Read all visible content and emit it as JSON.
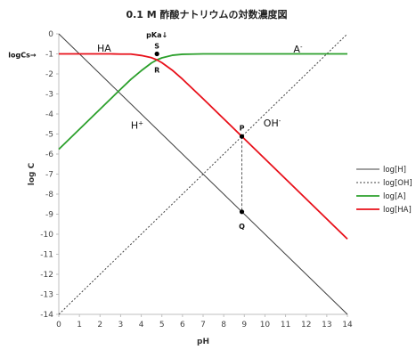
{
  "chart_data": {
    "type": "line",
    "title": "0.1 M 酢酸ナトリウムの対数濃度図",
    "xlabel": "pH",
    "ylabel": "log C",
    "xlim": [
      0,
      14
    ],
    "ylim": [
      -14,
      0
    ],
    "x_ticks": [
      0,
      1,
      2,
      3,
      4,
      5,
      6,
      7,
      8,
      9,
      10,
      11,
      12,
      13,
      14
    ],
    "y_ticks": [
      0,
      -1,
      -2,
      -3,
      -4,
      -5,
      -6,
      -7,
      -8,
      -9,
      -10,
      -11,
      -12,
      -13,
      -14
    ],
    "grid": false,
    "legend_position": "right",
    "x": [
      0,
      0.5,
      1,
      1.5,
      2,
      2.5,
      3,
      3.5,
      4,
      4.5,
      4.76,
      5,
      5.5,
      6,
      6.5,
      7,
      7.5,
      8,
      8.5,
      8.88,
      9,
      9.5,
      10,
      10.5,
      11,
      11.5,
      12,
      12.5,
      13,
      13.5,
      14
    ],
    "series": [
      {
        "name": "log[H]",
        "color": "#404040",
        "dash": "solid",
        "values": [
          0,
          -0.5,
          -1,
          -1.5,
          -2,
          -2.5,
          -3,
          -3.5,
          -4,
          -4.5,
          -4.76,
          -5,
          -5.5,
          -6,
          -6.5,
          -7,
          -7.5,
          -8,
          -8.5,
          -8.88,
          -9,
          -9.5,
          -10,
          -10.5,
          -11,
          -11.5,
          -12,
          -12.5,
          -13,
          -13.5,
          -14
        ]
      },
      {
        "name": "log[OH]",
        "color": "#404040",
        "dash": "dotted",
        "values": [
          -14,
          -13.5,
          -13,
          -12.5,
          -12,
          -11.5,
          -11,
          -10.5,
          -10,
          -9.5,
          -9.24,
          -9,
          -8.5,
          -8,
          -7.5,
          -7,
          -6.5,
          -6,
          -5.5,
          -5.12,
          -5,
          -4.5,
          -4,
          -3.5,
          -3,
          -2.5,
          -2,
          -1.5,
          -1,
          -0.5,
          0
        ]
      },
      {
        "name": "log[A]",
        "color": "#2ca02c",
        "dash": "solid",
        "values": [
          -5.76,
          -5.26,
          -4.76,
          -4.26,
          -3.76,
          -3.26,
          -2.76,
          -2.27,
          -1.84,
          -1.45,
          -1.3,
          -1.2,
          -1.07,
          -1.02,
          -1.01,
          -1.0,
          -1.0,
          -1.0,
          -1.0,
          -1.0,
          -1.0,
          -1.0,
          -1.0,
          -1.0,
          -1.0,
          -1.0,
          -1.0,
          -1.0,
          -1.0,
          -1.0,
          -1.0
        ]
      },
      {
        "name": "log[HA]",
        "color": "#e8101a",
        "dash": "solid",
        "values": [
          -1.0,
          -1.0,
          -1.0,
          -1.0,
          -1.0,
          -1.0,
          -1.01,
          -1.01,
          -1.08,
          -1.19,
          -1.3,
          -1.44,
          -1.81,
          -2.26,
          -2.75,
          -3.24,
          -3.74,
          -4.24,
          -4.74,
          -5.12,
          -5.24,
          -5.74,
          -6.24,
          -6.74,
          -7.24,
          -7.74,
          -8.24,
          -8.74,
          -9.24,
          -9.74,
          -10.24
        ]
      }
    ],
    "annotations": [
      {
        "text": "HA",
        "x": 2.2,
        "y": -0.7,
        "color": "#111111"
      },
      {
        "text": "A",
        "sup": "-",
        "x": 11.6,
        "y": -0.75,
        "color": "#111111"
      },
      {
        "text": "H",
        "sup": "+",
        "x": 3.8,
        "y": -4.55,
        "color": "#111111"
      },
      {
        "text": "OH",
        "sup": "-",
        "x": 10.35,
        "y": -4.45,
        "color": "#111111"
      },
      {
        "text": "logCs→",
        "x": -2.45,
        "y": -1.0,
        "color": "#111111"
      },
      {
        "text": "pKa↓",
        "x": 4.76,
        "y": 0.0,
        "color": "#111111"
      },
      {
        "text": "S",
        "x": 4.76,
        "y": -0.55,
        "color": "#111111"
      },
      {
        "text": "R",
        "x": 4.76,
        "y": -1.75,
        "color": "#e8101a"
      },
      {
        "text": "P",
        "x": 8.88,
        "y": -4.65,
        "color": "#111111"
      },
      {
        "text": "Q",
        "x": 8.88,
        "y": -9.55,
        "color": "#111111"
      }
    ],
    "points": [
      {
        "label": "S",
        "x": 4.76,
        "y": -1.0
      },
      {
        "label": "R",
        "x": 4.76,
        "y": -1.3
      },
      {
        "label": "P",
        "x": 8.88,
        "y": -5.12
      },
      {
        "label": "Q",
        "x": 8.88,
        "y": -8.88
      }
    ],
    "guide_line": {
      "x": 8.88,
      "from_y": -5.12,
      "to_y": -8.88,
      "style": "dashed"
    }
  }
}
